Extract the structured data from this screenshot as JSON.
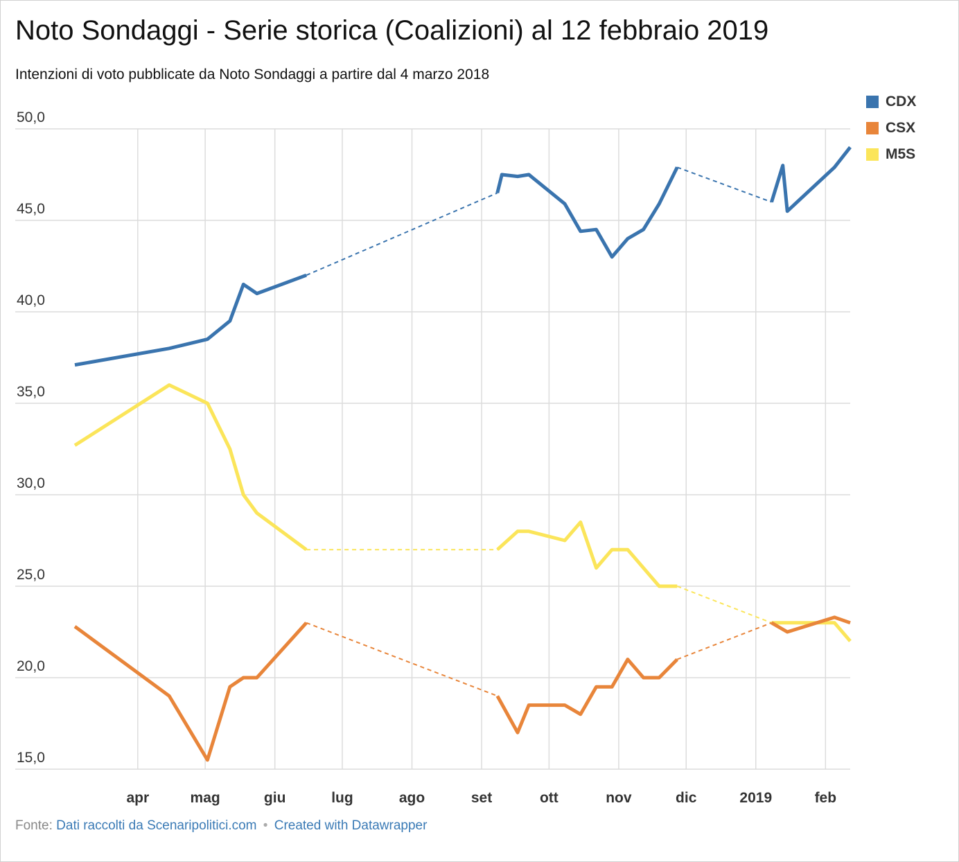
{
  "title": "Noto Sondaggi - Serie storica (Coalizioni) al 12 febbraio 2019",
  "subtitle": "Intenzioni di voto pubblicate da Noto Sondaggi a partire dal 4 marzo 2018",
  "footer": {
    "source_label": "Fonte:",
    "source_text": "Dati raccolti da Scenaripolitici.com",
    "separator": "•",
    "credit_text": "Created with Datawrapper"
  },
  "colors": {
    "CDX": "#3a74ae",
    "CSX": "#e8853a",
    "M5S": "#fbe55a",
    "grid": "#dcdcdc",
    "axis_text": "#333333"
  },
  "chart_data": {
    "type": "line",
    "title": "Noto Sondaggi - Serie storica (Coalizioni) al 12 febbraio 2019",
    "xlabel": "",
    "ylabel": "",
    "x_type": "date",
    "xlim": [
      "2018-03-04",
      "2019-02-12"
    ],
    "ylim": [
      15,
      50
    ],
    "yticks": [
      "15,0",
      "20,0",
      "25,0",
      "30,0",
      "35,0",
      "40,0",
      "45,0",
      "50,0"
    ],
    "ytick_values": [
      15,
      20,
      25,
      30,
      35,
      40,
      45,
      50
    ],
    "xticks": [
      {
        "label": "apr",
        "date": "2018-04-01"
      },
      {
        "label": "mag",
        "date": "2018-05-01"
      },
      {
        "label": "giu",
        "date": "2018-06-01"
      },
      {
        "label": "lug",
        "date": "2018-07-01"
      },
      {
        "label": "ago",
        "date": "2018-08-01"
      },
      {
        "label": "set",
        "date": "2018-09-01"
      },
      {
        "label": "ott",
        "date": "2018-10-01"
      },
      {
        "label": "nov",
        "date": "2018-11-01"
      },
      {
        "label": "dic",
        "date": "2018-12-01"
      },
      {
        "label": "2019",
        "date": "2019-01-01"
      },
      {
        "label": "feb",
        "date": "2019-02-01"
      }
    ],
    "grid": true,
    "legend_position": "top-right",
    "series": [
      {
        "name": "CDX",
        "segments": [
          [
            [
              "2018-03-04",
              37.1
            ],
            [
              "2018-04-15",
              38.0
            ],
            [
              "2018-05-02",
              38.5
            ],
            [
              "2018-05-12",
              39.5
            ],
            [
              "2018-05-18",
              41.5
            ],
            [
              "2018-05-24",
              41.0
            ],
            [
              "2018-06-15",
              42.0
            ]
          ],
          [
            [
              "2018-09-08",
              46.5
            ],
            [
              "2018-09-10",
              47.5
            ],
            [
              "2018-09-17",
              47.4
            ],
            [
              "2018-09-22",
              47.5
            ],
            [
              "2018-10-08",
              45.9
            ],
            [
              "2018-10-15",
              44.4
            ],
            [
              "2018-10-22",
              44.5
            ],
            [
              "2018-10-29",
              43.0
            ],
            [
              "2018-11-05",
              44.0
            ],
            [
              "2018-11-12",
              44.5
            ],
            [
              "2018-11-19",
              45.9
            ],
            [
              "2018-11-27",
              47.9
            ]
          ],
          [
            [
              "2019-01-08",
              46.0
            ],
            [
              "2019-01-13",
              48.0
            ],
            [
              "2019-01-15",
              45.5
            ],
            [
              "2019-02-05",
              47.9
            ],
            [
              "2019-02-12",
              49.0
            ]
          ]
        ],
        "gaps": [
          [
            [
              "2018-06-15",
              42.0
            ],
            [
              "2018-09-08",
              46.5
            ]
          ],
          [
            [
              "2018-11-27",
              47.9
            ],
            [
              "2019-01-08",
              46.0
            ]
          ]
        ]
      },
      {
        "name": "CSX",
        "segments": [
          [
            [
              "2018-03-04",
              22.8
            ],
            [
              "2018-04-15",
              19.0
            ],
            [
              "2018-05-02",
              15.5
            ],
            [
              "2018-05-12",
              19.5
            ],
            [
              "2018-05-18",
              20.0
            ],
            [
              "2018-05-24",
              20.0
            ],
            [
              "2018-06-15",
              23.0
            ]
          ],
          [
            [
              "2018-09-08",
              19.0
            ],
            [
              "2018-09-17",
              17.0
            ],
            [
              "2018-09-22",
              18.5
            ],
            [
              "2018-10-08",
              18.5
            ],
            [
              "2018-10-15",
              18.0
            ],
            [
              "2018-10-22",
              19.5
            ],
            [
              "2018-10-29",
              19.5
            ],
            [
              "2018-11-05",
              21.0
            ],
            [
              "2018-11-12",
              20.0
            ],
            [
              "2018-11-19",
              20.0
            ],
            [
              "2018-11-27",
              21.0
            ]
          ],
          [
            [
              "2019-01-08",
              23.0
            ],
            [
              "2019-01-15",
              22.5
            ],
            [
              "2019-02-05",
              23.3
            ],
            [
              "2019-02-12",
              23.0
            ]
          ]
        ],
        "gaps": [
          [
            [
              "2018-06-15",
              23.0
            ],
            [
              "2018-09-08",
              19.0
            ]
          ],
          [
            [
              "2018-11-27",
              21.0
            ],
            [
              "2019-01-08",
              23.0
            ]
          ]
        ]
      },
      {
        "name": "M5S",
        "segments": [
          [
            [
              "2018-03-04",
              32.7
            ],
            [
              "2018-04-15",
              36.0
            ],
            [
              "2018-05-02",
              35.0
            ],
            [
              "2018-05-12",
              32.5
            ],
            [
              "2018-05-18",
              30.0
            ],
            [
              "2018-05-24",
              29.0
            ],
            [
              "2018-06-15",
              27.0
            ]
          ],
          [
            [
              "2018-09-08",
              27.0
            ],
            [
              "2018-09-17",
              28.0
            ],
            [
              "2018-09-22",
              28.0
            ],
            [
              "2018-10-08",
              27.5
            ],
            [
              "2018-10-15",
              28.5
            ],
            [
              "2018-10-22",
              26.0
            ],
            [
              "2018-10-29",
              27.0
            ],
            [
              "2018-11-05",
              27.0
            ],
            [
              "2018-11-19",
              25.0
            ],
            [
              "2018-11-27",
              25.0
            ]
          ],
          [
            [
              "2019-01-08",
              23.0
            ],
            [
              "2019-01-15",
              23.0
            ],
            [
              "2019-02-05",
              23.0
            ],
            [
              "2019-02-12",
              22.0
            ]
          ]
        ],
        "gaps": [
          [
            [
              "2018-06-15",
              27.0
            ],
            [
              "2018-09-08",
              27.0
            ]
          ],
          [
            [
              "2018-11-27",
              25.0
            ],
            [
              "2019-01-08",
              23.0
            ]
          ]
        ]
      }
    ]
  }
}
